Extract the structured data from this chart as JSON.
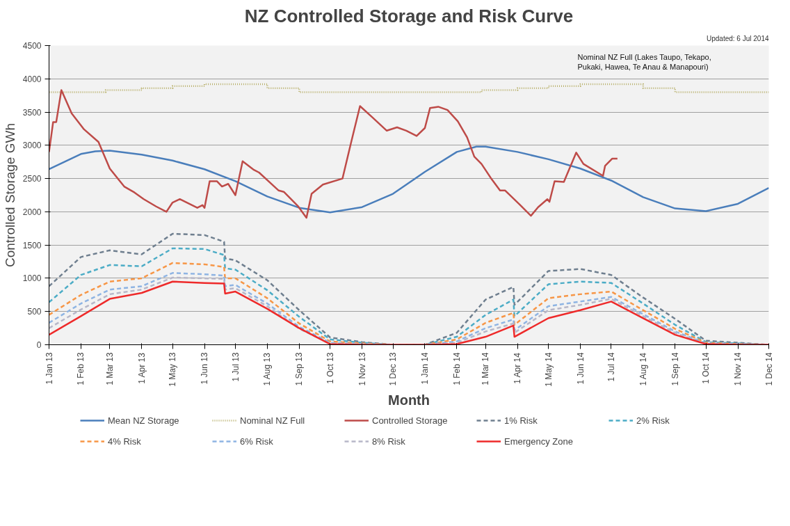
{
  "chart_data": {
    "type": "line",
    "title": "NZ Controlled Storage and Risk Curve",
    "xlabel": "Month",
    "ylabel": "Controlled Storage GWh",
    "annotations": [
      "Updated: 6 Jul 2014",
      "Nominal NZ Full (Lakes Taupo, Tekapo, Pukaki, Hawea, Te Anau & Manapouri)"
    ],
    "xlim": [
      "2013-01-01",
      "2014-12-01"
    ],
    "xticks": [
      {
        "value": "2013-01-01",
        "label": "1 Jan 13"
      },
      {
        "value": "2013-02-01",
        "label": "1 Feb 13"
      },
      {
        "value": "2013-03-01",
        "label": "1 Mar 13"
      },
      {
        "value": "2013-04-01",
        "label": "1 Apr 13"
      },
      {
        "value": "2013-05-01",
        "label": "1 May 13"
      },
      {
        "value": "2013-06-01",
        "label": "1 Jun 13"
      },
      {
        "value": "2013-07-01",
        "label": "1 Jul 13"
      },
      {
        "value": "2013-08-01",
        "label": "1 Aug 13"
      },
      {
        "value": "2013-09-01",
        "label": "1 Sep 13"
      },
      {
        "value": "2013-10-01",
        "label": "1 Oct 13"
      },
      {
        "value": "2013-11-01",
        "label": "1 Nov 13"
      },
      {
        "value": "2013-12-01",
        "label": "1 Dec 13"
      },
      {
        "value": "2014-01-01",
        "label": "1 Jan 14"
      },
      {
        "value": "2014-02-01",
        "label": "1 Feb 14"
      },
      {
        "value": "2014-03-01",
        "label": "1 Mar 14"
      },
      {
        "value": "2014-04-01",
        "label": "1 Apr 14"
      },
      {
        "value": "2014-05-01",
        "label": "1 May 14"
      },
      {
        "value": "2014-06-01",
        "label": "1 Jun 14"
      },
      {
        "value": "2014-07-01",
        "label": "1 Jul 14"
      },
      {
        "value": "2014-08-01",
        "label": "1 Aug 14"
      },
      {
        "value": "2014-09-01",
        "label": "1 Sep 14"
      },
      {
        "value": "2014-10-01",
        "label": "1 Oct 14"
      },
      {
        "value": "2014-11-01",
        "label": "1 Nov 14"
      },
      {
        "value": "2014-12-01",
        "label": "1 Dec 14"
      }
    ],
    "ylim": [
      0,
      4500
    ],
    "yticks": [
      0,
      500,
      1000,
      1500,
      2000,
      2500,
      3000,
      3500,
      4000,
      4500
    ],
    "grid": "y",
    "legend": "bottom",
    "x": [
      "2013-01-01",
      "2013-02-01",
      "2013-03-01",
      "2013-04-01",
      "2013-05-01",
      "2013-06-01",
      "2013-06-20",
      "2013-06-21",
      "2013-07-01",
      "2013-08-01",
      "2013-09-01",
      "2013-10-01",
      "2013-11-01",
      "2013-12-01",
      "2014-01-01",
      "2014-02-01",
      "2014-03-01",
      "2014-03-28",
      "2014-03-29",
      "2014-05-01",
      "2014-06-01",
      "2014-07-01",
      "2014-08-01",
      "2014-09-01",
      "2014-10-01",
      "2014-11-01",
      "2014-12-01"
    ],
    "series": [
      {
        "name": "Mean NZ Storage",
        "color": "#4a7ebb",
        "line_style": "solid",
        "x": [
          "2013-01-01",
          "2013-02-01",
          "2013-02-15",
          "2013-03-01",
          "2013-04-01",
          "2013-05-01",
          "2013-06-01",
          "2013-07-01",
          "2013-08-01",
          "2013-09-01",
          "2013-10-01",
          "2013-11-01",
          "2013-12-01",
          "2014-01-01",
          "2014-02-01",
          "2014-02-20",
          "2014-03-01",
          "2014-04-01",
          "2014-05-01",
          "2014-06-01",
          "2014-07-01",
          "2014-08-01",
          "2014-09-01",
          "2014-10-01",
          "2014-11-01",
          "2014-12-01"
        ],
        "values": [
          2640,
          2870,
          2910,
          2920,
          2860,
          2770,
          2640,
          2460,
          2230,
          2060,
          1990,
          2070,
          2270,
          2600,
          2900,
          2980,
          2980,
          2900,
          2790,
          2650,
          2470,
          2220,
          2050,
          2010,
          2120,
          2360
        ]
      },
      {
        "name": "Nominal NZ Full",
        "color": "#b8b06a",
        "type": "step",
        "line_style": "dotted",
        "x": [
          "2013-01-01",
          "2013-02-25",
          "2013-04-01",
          "2013-05-01",
          "2013-06-01",
          "2013-08-01",
          "2013-09-01",
          "2014-02-25",
          "2014-04-01",
          "2014-05-01",
          "2014-06-01",
          "2014-08-01",
          "2014-09-01",
          "2014-12-01"
        ],
        "values": [
          3800,
          3830,
          3860,
          3890,
          3920,
          3860,
          3800,
          3830,
          3860,
          3890,
          3920,
          3860,
          3800,
          3800
        ]
      },
      {
        "name": "Controlled Storage",
        "color": "#be4b48",
        "line_style": "solid",
        "x": [
          "2013-01-01",
          "2013-01-05",
          "2013-01-08",
          "2013-01-13",
          "2013-01-23",
          "2013-02-04",
          "2013-02-18",
          "2013-03-01",
          "2013-03-15",
          "2013-03-25",
          "2013-04-03",
          "2013-04-15",
          "2013-04-25",
          "2013-05-01",
          "2013-05-08",
          "2013-05-25",
          "2013-05-30",
          "2013-06-01",
          "2013-06-06",
          "2013-06-13",
          "2013-06-18",
          "2013-06-24",
          "2013-07-01",
          "2013-07-08",
          "2013-07-19",
          "2013-07-24",
          "2013-08-12",
          "2013-08-17",
          "2013-08-31",
          "2013-09-08",
          "2013-09-13",
          "2013-09-24",
          "2013-10-13",
          "2013-10-21",
          "2013-10-30",
          "2013-11-11",
          "2013-11-25",
          "2013-12-05",
          "2013-12-14",
          "2013-12-24",
          "2014-01-01",
          "2014-01-06",
          "2014-01-14",
          "2014-01-23",
          "2014-02-02",
          "2014-02-11",
          "2014-02-18",
          "2014-02-25",
          "2014-03-06",
          "2014-03-15",
          "2014-03-20",
          "2014-04-03",
          "2014-04-14",
          "2014-04-21",
          "2014-04-30",
          "2014-05-02",
          "2014-05-07",
          "2014-05-16",
          "2014-05-28",
          "2014-06-04",
          "2014-06-23",
          "2014-06-25",
          "2014-07-02",
          "2014-07-07"
        ],
        "values": [
          2900,
          3350,
          3350,
          3830,
          3480,
          3240,
          3050,
          2650,
          2380,
          2290,
          2190,
          2080,
          2000,
          2140,
          2190,
          2060,
          2100,
          2060,
          2460,
          2460,
          2380,
          2420,
          2250,
          2760,
          2630,
          2590,
          2320,
          2300,
          2080,
          1910,
          2270,
          2410,
          2500,
          3020,
          3590,
          3420,
          3220,
          3270,
          3220,
          3140,
          3260,
          3560,
          3580,
          3530,
          3360,
          3120,
          2830,
          2720,
          2510,
          2320,
          2320,
          2110,
          1940,
          2070,
          2190,
          2150,
          2460,
          2450,
          2890,
          2720,
          2540,
          2690,
          2800,
          2800
        ]
      },
      {
        "name": "1% Risk",
        "color": "#6f7f8f",
        "line_style": "dashed",
        "values": [
          880,
          1320,
          1420,
          1360,
          1670,
          1650,
          1550,
          1300,
          1270,
          970,
          520,
          110,
          40,
          0,
          0,
          180,
          680,
          870,
          600,
          1110,
          1140,
          1050,
          710,
          390,
          60,
          30,
          0
        ]
      },
      {
        "name": "2% Risk",
        "color": "#4bacc6",
        "line_style": "dashed",
        "values": [
          640,
          1050,
          1200,
          1180,
          1450,
          1440,
          1350,
          1150,
          1130,
          820,
          420,
          80,
          30,
          0,
          0,
          120,
          450,
          680,
          430,
          910,
          950,
          930,
          620,
          300,
          40,
          20,
          0
        ]
      },
      {
        "name": "4% Risk",
        "color": "#f79646",
        "line_style": "dashed",
        "values": [
          450,
          750,
          950,
          1000,
          1230,
          1210,
          1170,
          1000,
          1000,
          700,
          320,
          50,
          20,
          0,
          0,
          80,
          330,
          480,
          300,
          700,
          760,
          800,
          520,
          240,
          30,
          10,
          0
        ]
      },
      {
        "name": "6% Risk",
        "color": "#8eb4e3",
        "line_style": "dashed",
        "values": [
          330,
          620,
          830,
          880,
          1080,
          1060,
          1040,
          880,
          900,
          620,
          270,
          30,
          10,
          0,
          0,
          50,
          250,
          380,
          220,
          580,
          650,
          720,
          460,
          200,
          20,
          10,
          0
        ]
      },
      {
        "name": "8% Risk",
        "color": "#b7b7c8",
        "line_style": "dashed",
        "values": [
          250,
          530,
          760,
          830,
          1010,
          1000,
          990,
          830,
          850,
          580,
          240,
          20,
          10,
          0,
          0,
          30,
          200,
          320,
          180,
          520,
          600,
          690,
          430,
          180,
          10,
          0,
          0
        ]
      },
      {
        "name": "Emergency Zone",
        "color": "#ee2a2a",
        "line_style": "solid",
        "values": [
          150,
          430,
          690,
          780,
          950,
          930,
          920,
          770,
          800,
          540,
          250,
          10,
          0,
          0,
          0,
          10,
          120,
          290,
          120,
          400,
          520,
          650,
          400,
          150,
          10,
          0,
          0
        ]
      }
    ]
  }
}
